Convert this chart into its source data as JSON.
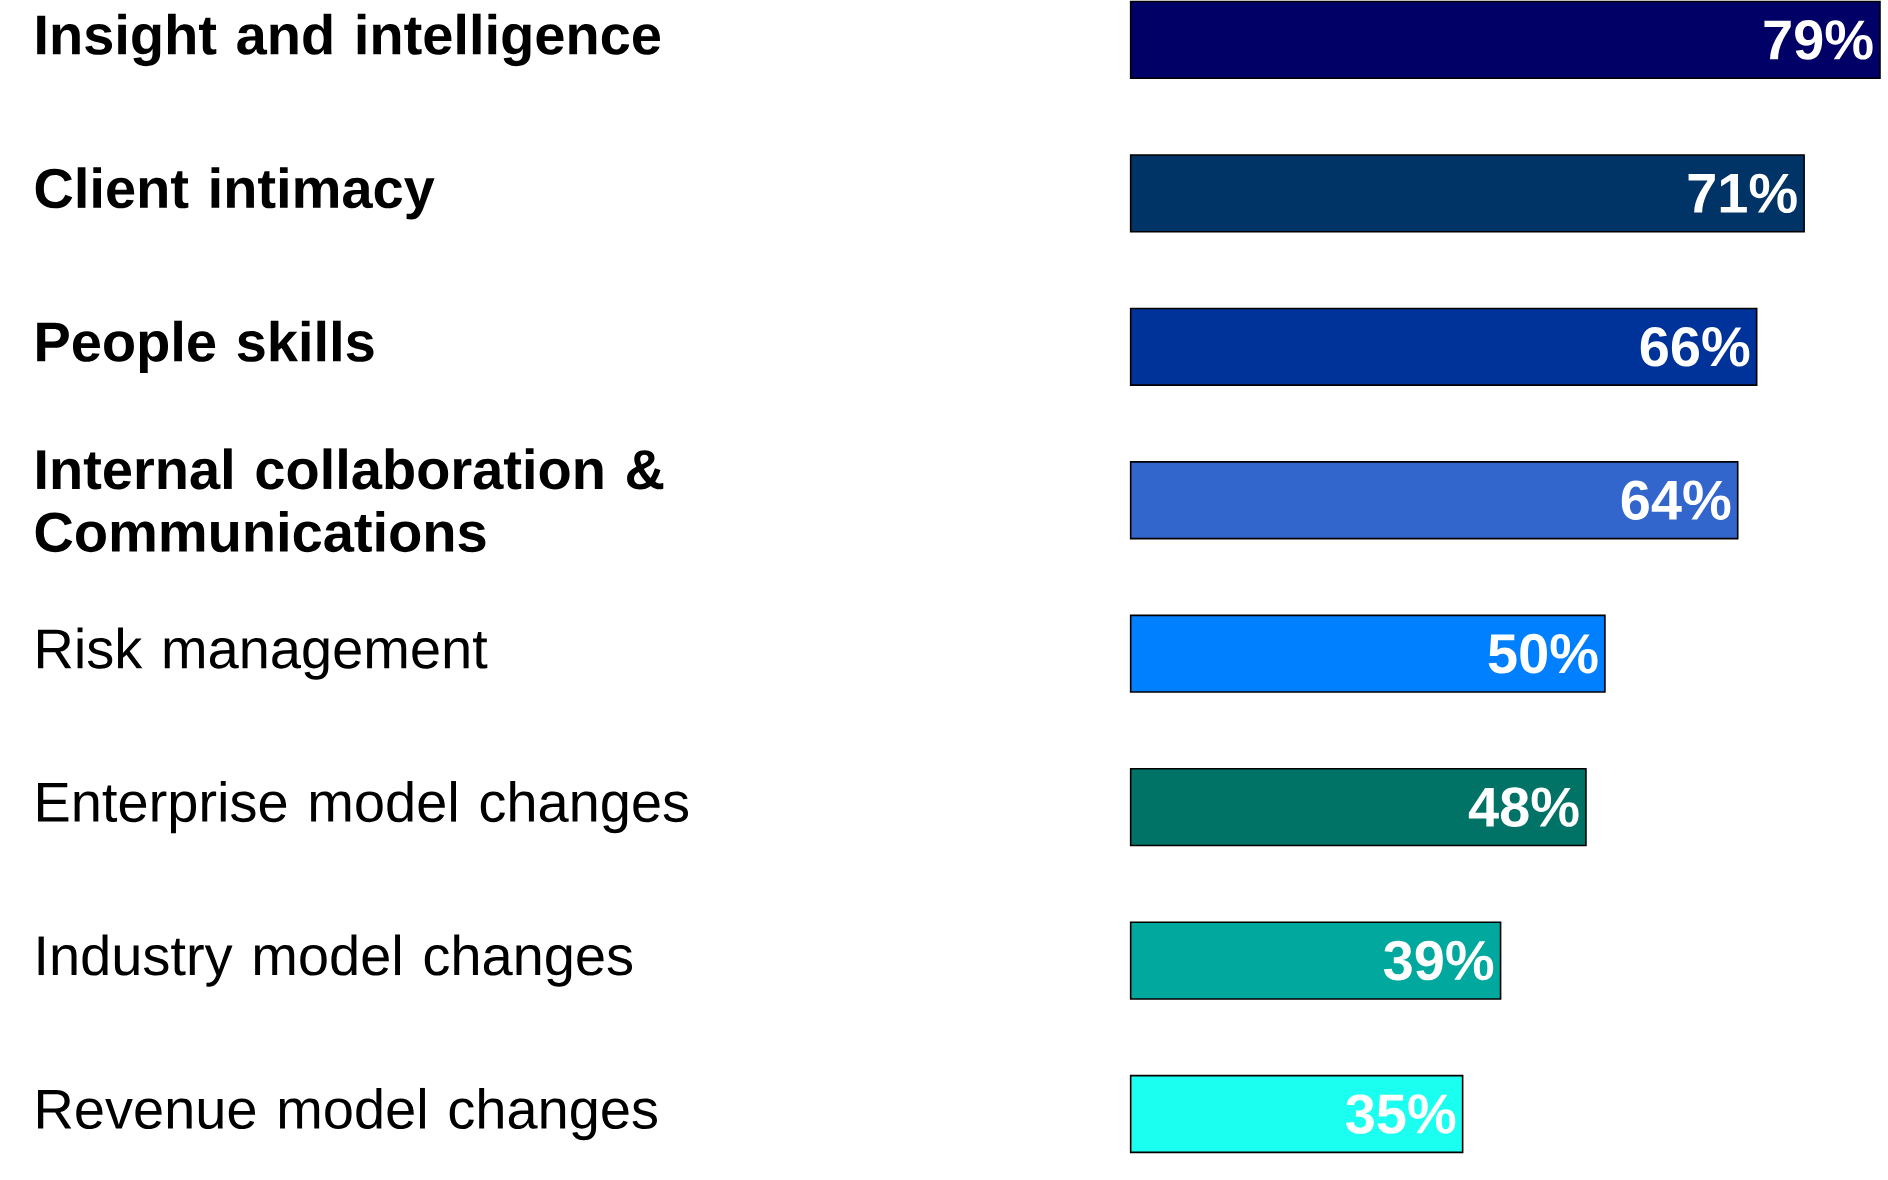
{
  "chart_data": {
    "type": "bar",
    "orientation": "horizontal",
    "categories": [
      "**Insight and intelligence**",
      "**Client intimacy**",
      "**People skills**",
      "**Internal collaboration & Communications**",
      "Risk management",
      "Enterprise model changes",
      "Industry model changes",
      "Revenue model changes"
    ],
    "values": [
      79,
      71,
      66,
      64,
      50,
      48,
      39,
      35
    ],
    "value_labels": [
      "79%",
      "71%",
      "66%",
      "64%",
      "50%",
      "48%",
      "39%",
      "35%"
    ],
    "colors": [
      "#000066",
      "#003366",
      "#003399",
      "#3366cc",
      "#0080ff",
      "#007366",
      "#00a89d",
      "#1affef"
    ]
  }
}
